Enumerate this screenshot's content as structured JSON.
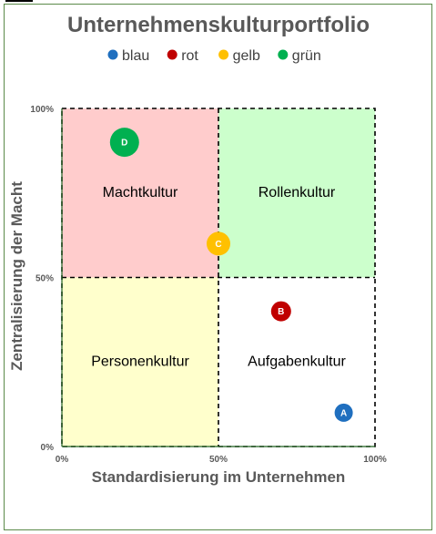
{
  "chart_data": {
    "type": "scatter",
    "title": "Unternehmenskulturportfolio",
    "xlabel": "Standardisierung im Unternehmen",
    "ylabel": "Zentralisierung der Macht",
    "xlim": [
      0,
      100
    ],
    "ylim": [
      0,
      100
    ],
    "x_ticks": [
      "0%",
      "50%",
      "100%"
    ],
    "y_ticks": [
      "0%",
      "50%",
      "100%"
    ],
    "legend": [
      {
        "name": "blau",
        "color": "#1f6fbf"
      },
      {
        "name": "rot",
        "color": "#c00000"
      },
      {
        "name": "gelb",
        "color": "#ffc000"
      },
      {
        "name": "grün",
        "color": "#00b050"
      }
    ],
    "legend_position": "top",
    "quadrants": [
      {
        "label": "Machtkultur",
        "x_range": [
          0,
          50
        ],
        "y_range": [
          50,
          100
        ],
        "color": "#ffcccc"
      },
      {
        "label": "Rollenkultur",
        "x_range": [
          50,
          100
        ],
        "y_range": [
          50,
          100
        ],
        "color": "#ccffcc"
      },
      {
        "label": "Personenkultur",
        "x_range": [
          0,
          50
        ],
        "y_range": [
          0,
          50
        ],
        "color": "#ffffcc"
      },
      {
        "label": "Aufgabenkultur",
        "x_range": [
          50,
          100
        ],
        "y_range": [
          0,
          50
        ],
        "color": "#ffffff"
      }
    ],
    "points": [
      {
        "label": "A",
        "series": "blau",
        "x": 90,
        "y": 10,
        "color": "#1f6fbf",
        "size": "small"
      },
      {
        "label": "B",
        "series": "rot",
        "x": 70,
        "y": 40,
        "color": "#c00000",
        "size": "medium"
      },
      {
        "label": "C",
        "series": "gelb",
        "x": 50,
        "y": 60,
        "color": "#ffc000",
        "size": "large"
      },
      {
        "label": "D",
        "series": "grün",
        "x": 20,
        "y": 90,
        "color": "#00b050",
        "size": "xlarge"
      }
    ]
  }
}
